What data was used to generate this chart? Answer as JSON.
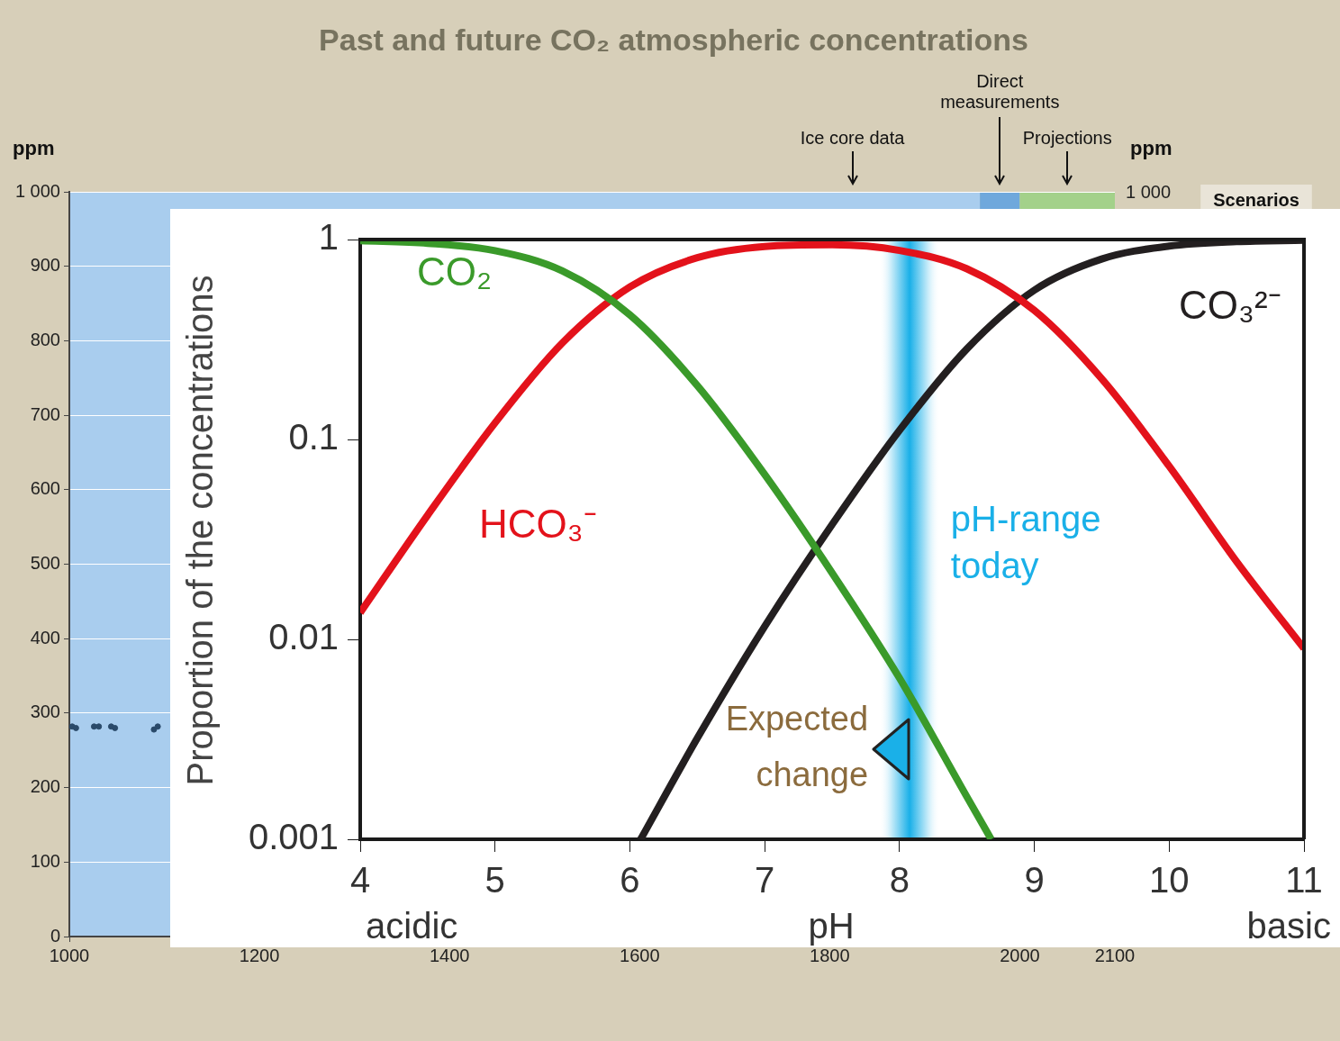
{
  "chart_data": [
    {
      "type": "scatter",
      "title": "Past and future CO₂ atmospheric concentrations",
      "ylabel": "ppm",
      "x": [
        1003,
        1007,
        1026,
        1031,
        1044,
        1048,
        1089,
        1093
      ],
      "series": [
        {
          "color": "#2a4a6a",
          "values": [
            282,
            280,
            282,
            282,
            282,
            280,
            278,
            282
          ]
        }
      ],
      "xlim": [
        1000,
        2100
      ],
      "xticks": [
        1000,
        1200,
        1400,
        1600,
        1800,
        2000,
        2100
      ],
      "ylim": [
        0,
        1000
      ],
      "yticks": [
        0,
        100,
        200,
        300,
        400,
        500,
        600,
        700,
        800,
        900,
        {
          "value": 1000,
          "label": "1 000"
        }
      ],
      "grid": "y",
      "legend": false,
      "marker": "circle",
      "bands": [
        {
          "axis": "x",
          "from": 1000,
          "to": 1958,
          "label": "Ice core data",
          "color": "#a9cdee"
        },
        {
          "axis": "x",
          "from": 1958,
          "to": 2000,
          "label": "Direct measurements",
          "color": "#6fa8dc"
        },
        {
          "axis": "x",
          "from": 2000,
          "to": 2100,
          "label": "Projections",
          "color": "#a3d18a"
        }
      ],
      "annotations": [
        "Scenarios",
        "ppm",
        "1 000"
      ]
    },
    {
      "type": "line",
      "xlabel": "pH",
      "ylabel": "Proportion of the concentrations",
      "log": "y",
      "xlim": [
        4,
        11
      ],
      "xticks": [
        4,
        5,
        6,
        7,
        8,
        9,
        10,
        11
      ],
      "ylim": [
        0.001,
        1
      ],
      "yticks": [
        0.001,
        0.01,
        0.1,
        1
      ],
      "grid": false,
      "legend": false,
      "marker": "none",
      "line_style": "solid",
      "series": [
        {
          "name": "CO₂",
          "color": "#3a9a2a",
          "x": [
            4,
            4.5,
            5,
            5.5,
            6,
            6.5,
            7,
            7.5,
            8,
            8.5,
            8.68
          ],
          "values": [
            0.986,
            0.958,
            0.879,
            0.696,
            0.42,
            0.186,
            0.0668,
            0.0215,
            0.0064,
            0.00163,
            0.001
          ]
        },
        {
          "name": "HCO₃⁻",
          "color": "#e3121b",
          "x": [
            4,
            4.5,
            5,
            5.5,
            6,
            6.5,
            7,
            7.5,
            8,
            8.5,
            9,
            9.5,
            10,
            10.5,
            11
          ],
          "values": [
            0.0136,
            0.0418,
            0.121,
            0.304,
            0.579,
            0.811,
            0.922,
            0.941,
            0.882,
            0.714,
            0.442,
            0.201,
            0.0735,
            0.0245,
            0.009
          ]
        },
        {
          "name": "CO₃²⁻",
          "color": "#231f20",
          "x": [
            6.08,
            6.5,
            7,
            7.5,
            8,
            8.5,
            9,
            9.5,
            10,
            10.5,
            11
          ],
          "values": [
            0.001,
            0.0032,
            0.0116,
            0.0375,
            0.111,
            0.284,
            0.558,
            0.799,
            0.927,
            0.976,
            0.992
          ]
        }
      ],
      "bands": [
        {
          "axis": "x",
          "from": 7.85,
          "to": 8.3,
          "label": "pH-range today",
          "color": "#1ab0e8"
        }
      ],
      "annotations": [
        "acidic",
        "basic",
        "Expected change"
      ]
    }
  ]
}
